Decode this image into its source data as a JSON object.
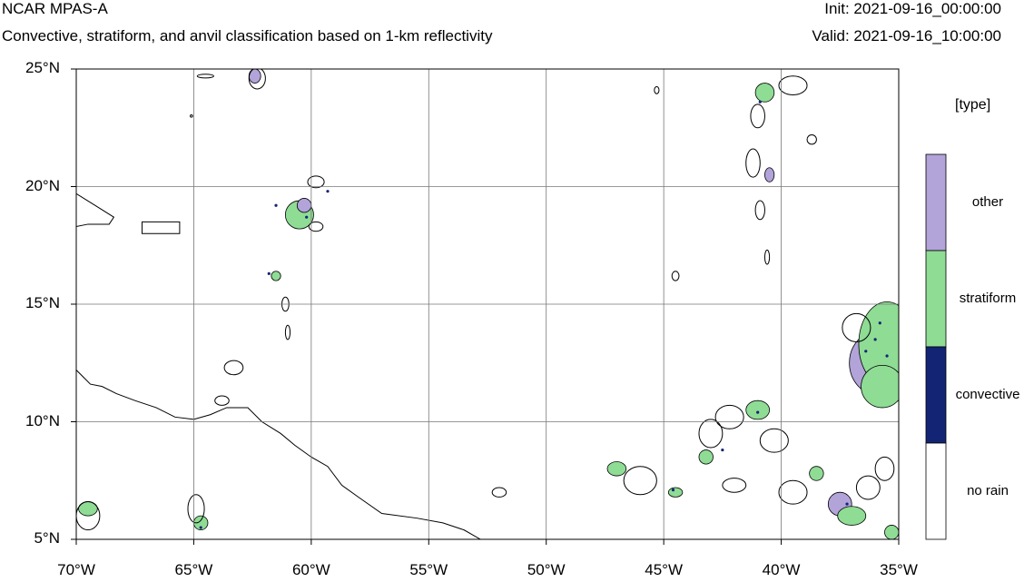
{
  "header": {
    "title": "NCAR MPAS-A",
    "subtitle": "Convective, stratiform, and anvil classification based on 1-km reflectivity",
    "init": "Init: 2021-09-16_00:00:00",
    "valid": "Valid: 2021-09-16_10:00:00"
  },
  "map": {
    "lon_range": [
      -70,
      -35
    ],
    "lat_range": [
      5,
      25
    ],
    "lat_ticks": [
      {
        "value": 25,
        "label": "25°N"
      },
      {
        "value": 20,
        "label": "20°N"
      },
      {
        "value": 15,
        "label": "15°N"
      },
      {
        "value": 10,
        "label": "10°N"
      },
      {
        "value": 5,
        "label": "5°N"
      }
    ],
    "lon_ticks": [
      {
        "value": -70,
        "label": "70°W"
      },
      {
        "value": -65,
        "label": "65°W"
      },
      {
        "value": -60,
        "label": "60°W"
      },
      {
        "value": -55,
        "label": "55°W"
      },
      {
        "value": -50,
        "label": "50°W"
      },
      {
        "value": -45,
        "label": "45°W"
      },
      {
        "value": -40,
        "label": "40°W"
      },
      {
        "value": -35,
        "label": "35°W"
      }
    ],
    "coastline": [
      [
        -70,
        12.2
      ],
      [
        -69.7,
        11.9
      ],
      [
        -69.4,
        11.6
      ],
      [
        -68.9,
        11.5
      ],
      [
        -68.3,
        11.2
      ],
      [
        -67.5,
        10.9
      ],
      [
        -66.6,
        10.6
      ],
      [
        -65.8,
        10.2
      ],
      [
        -65.0,
        10.1
      ],
      [
        -64.3,
        10.3
      ],
      [
        -63.6,
        10.6
      ],
      [
        -62.7,
        10.6
      ],
      [
        -62.1,
        10.0
      ],
      [
        -61.3,
        9.5
      ],
      [
        -60.7,
        9.0
      ],
      [
        -60.0,
        8.5
      ],
      [
        -59.3,
        8.1
      ],
      [
        -58.7,
        7.3
      ],
      [
        -58.0,
        6.8
      ],
      [
        -57.0,
        6.1
      ],
      [
        -55.5,
        5.9
      ],
      [
        -54.4,
        5.7
      ],
      [
        -53.5,
        5.4
      ],
      [
        -52.8,
        5.0
      ]
    ],
    "islands": [
      [
        [
          -70,
          19.7
        ],
        [
          -69.2,
          19.2
        ],
        [
          -68.4,
          18.7
        ],
        [
          -68.6,
          18.4
        ],
        [
          -69.5,
          18.4
        ],
        [
          -70,
          18.3
        ]
      ],
      [
        [
          -67.2,
          18.5
        ],
        [
          -65.6,
          18.5
        ],
        [
          -65.6,
          18.0
        ],
        [
          -67.2,
          18.0
        ]
      ]
    ],
    "precip_areas": [
      {
        "type": "other",
        "center": [
          -35.8,
          12.5
        ],
        "radius": [
          1.3,
          1.4
        ]
      },
      {
        "type": "stratiform",
        "center": [
          -35.5,
          13.3
        ],
        "radius": [
          1.2,
          1.8
        ]
      },
      {
        "type": "stratiform",
        "center": [
          -35.7,
          11.5
        ],
        "radius": [
          0.9,
          0.9
        ]
      },
      {
        "type": "stratiform",
        "center": [
          -60.5,
          18.8
        ],
        "radius": [
          0.6,
          0.6
        ]
      },
      {
        "type": "other",
        "center": [
          -60.3,
          19.2
        ],
        "radius": [
          0.3,
          0.3
        ]
      },
      {
        "type": "stratiform",
        "center": [
          -69.5,
          6.3
        ],
        "radius": [
          0.4,
          0.3
        ]
      },
      {
        "type": "stratiform",
        "center": [
          -64.7,
          5.7
        ],
        "radius": [
          0.3,
          0.3
        ]
      },
      {
        "type": "other",
        "center": [
          -62.4,
          24.7
        ],
        "radius": [
          0.25,
          0.3
        ]
      },
      {
        "type": "stratiform",
        "center": [
          -41.0,
          10.5
        ],
        "radius": [
          0.5,
          0.4
        ]
      },
      {
        "type": "stratiform",
        "center": [
          -43.2,
          8.5
        ],
        "radius": [
          0.3,
          0.3
        ]
      },
      {
        "type": "stratiform",
        "center": [
          -44.5,
          7.0
        ],
        "radius": [
          0.3,
          0.2
        ]
      },
      {
        "type": "other",
        "center": [
          -37.5,
          6.5
        ],
        "radius": [
          0.5,
          0.5
        ]
      },
      {
        "type": "stratiform",
        "center": [
          -37.0,
          6.0
        ],
        "radius": [
          0.6,
          0.4
        ]
      },
      {
        "type": "stratiform",
        "center": [
          -35.3,
          5.3
        ],
        "radius": [
          0.3,
          0.3
        ]
      },
      {
        "type": "stratiform",
        "center": [
          -40.7,
          24.0
        ],
        "radius": [
          0.4,
          0.4
        ]
      },
      {
        "type": "other",
        "center": [
          -40.5,
          20.5
        ],
        "radius": [
          0.2,
          0.3
        ]
      },
      {
        "type": "stratiform",
        "center": [
          -61.5,
          16.2
        ],
        "radius": [
          0.2,
          0.2
        ]
      },
      {
        "type": "stratiform",
        "center": [
          -47.0,
          8.0
        ],
        "radius": [
          0.4,
          0.3
        ]
      },
      {
        "type": "stratiform",
        "center": [
          -38.5,
          7.8
        ],
        "radius": [
          0.3,
          0.3
        ]
      }
    ],
    "outlines": [
      {
        "center": [
          -59.8,
          18.3
        ],
        "radius": [
          0.3,
          0.2
        ]
      },
      {
        "center": [
          -62.3,
          24.6
        ],
        "radius": [
          0.35,
          0.45
        ]
      },
      {
        "center": [
          -41.0,
          23.0
        ],
        "radius": [
          0.3,
          0.5
        ]
      },
      {
        "center": [
          -41.2,
          21.0
        ],
        "radius": [
          0.3,
          0.6
        ]
      },
      {
        "center": [
          -40.9,
          19.0
        ],
        "radius": [
          0.2,
          0.4
        ]
      },
      {
        "center": [
          -39.5,
          24.3
        ],
        "radius": [
          0.6,
          0.4
        ]
      },
      {
        "center": [
          -38.7,
          22.0
        ],
        "radius": [
          0.2,
          0.2
        ]
      },
      {
        "center": [
          -44.5,
          16.2
        ],
        "radius": [
          0.15,
          0.2
        ]
      },
      {
        "center": [
          -61.1,
          15.0
        ],
        "radius": [
          0.15,
          0.3
        ]
      },
      {
        "center": [
          -61.0,
          13.8
        ],
        "radius": [
          0.1,
          0.3
        ]
      },
      {
        "center": [
          -65.1,
          23.0
        ],
        "radius": [
          0.05,
          0.05
        ]
      },
      {
        "center": [
          -42.2,
          10.2
        ],
        "radius": [
          0.6,
          0.5
        ]
      },
      {
        "center": [
          -40.3,
          9.2
        ],
        "radius": [
          0.6,
          0.5
        ]
      },
      {
        "center": [
          -43.0,
          9.5
        ],
        "radius": [
          0.5,
          0.6
        ]
      },
      {
        "center": [
          -46.0,
          7.5
        ],
        "radius": [
          0.7,
          0.6
        ]
      },
      {
        "center": [
          -42.0,
          7.3
        ],
        "radius": [
          0.5,
          0.3
        ]
      },
      {
        "center": [
          -39.5,
          7.0
        ],
        "radius": [
          0.6,
          0.5
        ]
      },
      {
        "center": [
          -36.3,
          7.2
        ],
        "radius": [
          0.5,
          0.5
        ]
      },
      {
        "center": [
          -63.3,
          12.3
        ],
        "radius": [
          0.4,
          0.3
        ]
      },
      {
        "center": [
          -63.8,
          10.9
        ],
        "radius": [
          0.3,
          0.2
        ]
      },
      {
        "center": [
          -64.9,
          6.3
        ],
        "radius": [
          0.35,
          0.6
        ]
      },
      {
        "center": [
          -69.5,
          6.0
        ],
        "radius": [
          0.5,
          0.6
        ]
      },
      {
        "center": [
          -64.5,
          24.7
        ],
        "radius": [
          0.35,
          0.08
        ]
      },
      {
        "center": [
          -45.3,
          24.1
        ],
        "radius": [
          0.1,
          0.15
        ]
      },
      {
        "center": [
          -40.6,
          17.0
        ],
        "radius": [
          0.1,
          0.3
        ]
      },
      {
        "center": [
          -52.0,
          7.0
        ],
        "radius": [
          0.3,
          0.2
        ]
      },
      {
        "center": [
          -59.8,
          20.2
        ],
        "radius": [
          0.35,
          0.25
        ]
      },
      {
        "center": [
          -36.8,
          14.0
        ],
        "radius": [
          0.6,
          0.6
        ]
      },
      {
        "center": [
          -35.6,
          8.0
        ],
        "radius": [
          0.4,
          0.5
        ]
      }
    ],
    "convective_dots": [
      [
        -61.5,
        19.2
      ],
      [
        -60.2,
        18.7
      ],
      [
        -41.0,
        10.4
      ],
      [
        -36.0,
        13.5
      ],
      [
        -35.5,
        12.8
      ],
      [
        -37.2,
        6.5
      ],
      [
        -64.7,
        5.5
      ],
      [
        -42.5,
        8.8
      ],
      [
        -61.8,
        16.3
      ],
      [
        -44.6,
        7.1
      ],
      [
        -59.3,
        19.8
      ],
      [
        -40.9,
        23.6
      ],
      [
        -36.4,
        13.0
      ],
      [
        -35.8,
        14.2
      ]
    ]
  },
  "legend": {
    "title": "[type]",
    "items": [
      {
        "label": "other",
        "color": "#b2a3d9"
      },
      {
        "label": "stratiform",
        "color": "#8fdc95"
      },
      {
        "label": "convective",
        "color": "#142474"
      },
      {
        "label": "no rain",
        "color": "#ffffff"
      }
    ]
  }
}
